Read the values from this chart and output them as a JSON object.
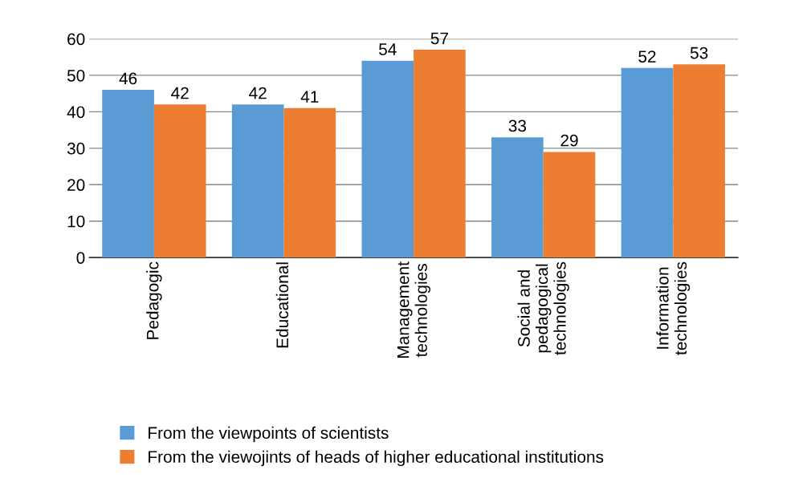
{
  "chart_data": {
    "type": "bar",
    "categories": [
      "Pedagogic",
      "Educational",
      "Management\ntechnologies",
      "Social and\npedagogical\ntechnologies",
      "Information\ntechnologies"
    ],
    "series": [
      {
        "name": "From the viewpoints of scientists",
        "color": "#5b9bd5",
        "values": [
          46,
          42,
          54,
          33,
          52
        ]
      },
      {
        "name": "From the viewojints of heads of higher educational institutions",
        "color": "#ed7d31",
        "values": [
          42,
          41,
          57,
          29,
          53
        ]
      }
    ],
    "ylim": [
      0,
      60
    ],
    "yticks": [
      0,
      10,
      20,
      30,
      40,
      50,
      60
    ],
    "grid": "y",
    "legend": "bottom",
    "data_labels": true
  }
}
